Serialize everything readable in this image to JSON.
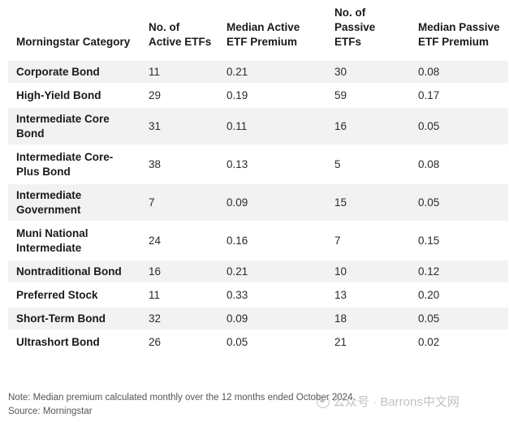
{
  "headers": [
    "Morningstar Category",
    "No. of Active ETFs",
    "Median Active ETF Premium",
    "No. of Passive ETFs",
    "Median Passive ETF Premium"
  ],
  "rows": [
    {
      "category": "Corporate Bond",
      "active_count": "11",
      "active_premium": "0.21",
      "passive_count": "30",
      "passive_premium": "0.08"
    },
    {
      "category": "High-Yield Bond",
      "active_count": "29",
      "active_premium": "0.19",
      "passive_count": "59",
      "passive_premium": "0.17"
    },
    {
      "category": "Intermediate Core Bond",
      "active_count": "31",
      "active_premium": "0.11",
      "passive_count": "16",
      "passive_premium": "0.05"
    },
    {
      "category": "Intermediate Core-Plus Bond",
      "active_count": "38",
      "active_premium": "0.13",
      "passive_count": "5",
      "passive_premium": "0.08"
    },
    {
      "category": "Intermediate Government",
      "active_count": "7",
      "active_premium": "0.09",
      "passive_count": "15",
      "passive_premium": "0.05"
    },
    {
      "category": "Muni National Intermediate",
      "active_count": "24",
      "active_premium": "0.16",
      "passive_count": "7",
      "passive_premium": "0.15"
    },
    {
      "category": "Nontraditional Bond",
      "active_count": "16",
      "active_premium": "0.21",
      "passive_count": "10",
      "passive_premium": "0.12"
    },
    {
      "category": "Preferred Stock",
      "active_count": "11",
      "active_premium": "0.33",
      "passive_count": "13",
      "passive_premium": "0.20"
    },
    {
      "category": "Short-Term Bond",
      "active_count": "32",
      "active_premium": "0.09",
      "passive_count": "18",
      "passive_premium": "0.05"
    },
    {
      "category": "Ultrashort Bond",
      "active_count": "26",
      "active_premium": "0.05",
      "passive_count": "21",
      "passive_premium": "0.02"
    }
  ],
  "footer": {
    "note": "Note: Median premium calculated monthly over the 12 months ended October 2024.",
    "source": "Source: Morningstar"
  },
  "watermark": {
    "text": "公众号 · Barrons中文网",
    "icon": "wechat-icon"
  },
  "colors": {
    "row_shade": "#f2f2f2",
    "text": "#1a1a1a",
    "footer_text": "#555555"
  }
}
